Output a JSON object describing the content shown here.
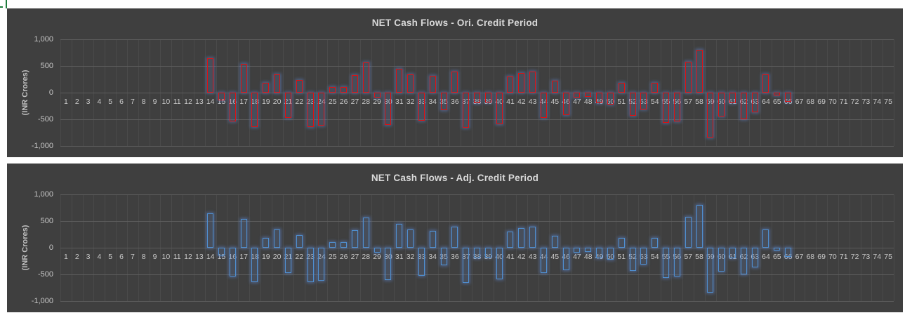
{
  "page": {
    "background": "#ffffff"
  },
  "selection_marker": {
    "name": "cell-selection-marker",
    "color": "#1e7b3c"
  },
  "colors": {
    "chart_background": "#3f3f3f",
    "title_text": "#d9d9d9",
    "axis_text": "#c6c6c6",
    "gridline_vertical": "#4a4a4a",
    "gridline_horizontal": "#5c5c5c",
    "bar_border_ori": "#e01010",
    "bar_border_adj": "#4f8fd0",
    "bar_glow": "#6491e1"
  },
  "chart_data": [
    {
      "type": "bar",
      "title": "NET Cash Flows - Ori. Credit Period",
      "xlabel": "",
      "ylabel": "(INR Crores)",
      "ylim": [
        -1000,
        1000
      ],
      "grid": true,
      "legend": "none",
      "y_ticks": [
        1000,
        500,
        0,
        -500,
        -1000
      ],
      "y_tick_labels": [
        "1,000",
        "500",
        "0",
        "-500",
        "-1,000"
      ],
      "bar_color": "#e01010",
      "categories": [
        1,
        2,
        3,
        4,
        5,
        6,
        7,
        8,
        9,
        10,
        11,
        12,
        13,
        14,
        15,
        16,
        17,
        18,
        19,
        20,
        21,
        22,
        23,
        24,
        25,
        26,
        27,
        28,
        29,
        30,
        31,
        32,
        33,
        34,
        35,
        36,
        37,
        38,
        39,
        40,
        41,
        42,
        43,
        44,
        45,
        46,
        47,
        48,
        49,
        50,
        51,
        52,
        53,
        54,
        55,
        56,
        57,
        58,
        59,
        60,
        61,
        62,
        63,
        64,
        65,
        66,
        67,
        68,
        69,
        70,
        71,
        72,
        73,
        74,
        75
      ],
      "values": [
        0,
        0,
        0,
        0,
        0,
        0,
        0,
        0,
        0,
        0,
        0,
        0,
        0,
        600,
        -110,
        -500,
        500,
        -600,
        150,
        300,
        -430,
        200,
        -610,
        -580,
        70,
        65,
        290,
        530,
        -50,
        -560,
        410,
        300,
        -490,
        280,
        -290,
        350,
        -620,
        -160,
        -140,
        -550,
        260,
        330,
        350,
        -430,
        180,
        -375,
        -55,
        -35,
        -160,
        -180,
        150,
        -400,
        -270,
        150,
        -530,
        -505,
        540,
        760,
        -800,
        -410,
        -160,
        -460,
        -330,
        300,
        -15,
        -130,
        0,
        0,
        0,
        0,
        0,
        0,
        0,
        0,
        0
      ]
    },
    {
      "type": "bar",
      "title": "NET Cash Flows - Adj. Credit Period",
      "xlabel": "",
      "ylabel": "(INR Crores)",
      "ylim": [
        -1000,
        1000
      ],
      "grid": true,
      "legend": "none",
      "y_ticks": [
        1000,
        500,
        0,
        -500,
        -1000
      ],
      "y_tick_labels": [
        "1,000",
        "500",
        "0",
        "-500",
        "-1,000"
      ],
      "bar_color": "#4f8fd0",
      "categories": [
        1,
        2,
        3,
        4,
        5,
        6,
        7,
        8,
        9,
        10,
        11,
        12,
        13,
        14,
        15,
        16,
        17,
        18,
        19,
        20,
        21,
        22,
        23,
        24,
        25,
        26,
        27,
        28,
        29,
        30,
        31,
        32,
        33,
        34,
        35,
        36,
        37,
        38,
        39,
        40,
        41,
        42,
        43,
        44,
        45,
        46,
        47,
        48,
        49,
        50,
        51,
        52,
        53,
        54,
        55,
        56,
        57,
        58,
        59,
        60,
        61,
        62,
        63,
        64,
        65,
        66,
        67,
        68,
        69,
        70,
        71,
        72,
        73,
        74,
        75
      ],
      "values": [
        0,
        0,
        0,
        0,
        0,
        0,
        0,
        0,
        0,
        0,
        0,
        0,
        0,
        600,
        -110,
        -500,
        500,
        -600,
        150,
        300,
        -430,
        200,
        -610,
        -580,
        70,
        65,
        290,
        530,
        -50,
        -560,
        410,
        300,
        -490,
        280,
        -290,
        350,
        -620,
        -160,
        -140,
        -550,
        260,
        330,
        350,
        -430,
        180,
        -375,
        -55,
        -35,
        -160,
        -180,
        150,
        -400,
        -270,
        150,
        -530,
        -505,
        540,
        760,
        -800,
        -410,
        -160,
        -460,
        -330,
        300,
        -15,
        -130,
        0,
        0,
        0,
        0,
        0,
        0,
        0,
        0,
        0
      ]
    }
  ]
}
